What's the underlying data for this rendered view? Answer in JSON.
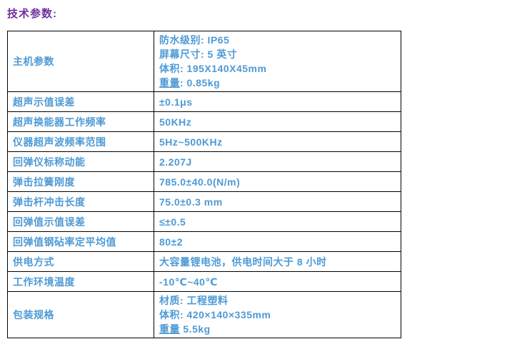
{
  "title": "技术参数:",
  "colors": {
    "title_text": "#7030A0",
    "table_text": "#4E9AD5",
    "table_border": "#000000",
    "background": "#FFFFFF"
  },
  "table": {
    "rows": [
      {
        "label": "主机参数",
        "lines": [
          "防水级别: IP65",
          "屏幕尺寸: 5 英寸",
          "体积: 195X140X45mm",
          {
            "u": "重量",
            "rest": ": 0.85kg"
          }
        ]
      },
      {
        "label": "超声示值误差",
        "value": "±0.1μs"
      },
      {
        "label": "超声换能器工作频率",
        "value": "50KHz"
      },
      {
        "label": "仪器超声波频率范围",
        "value": "5Hz~500KHz"
      },
      {
        "label": "回弹仪标称动能",
        "value": "2.207J"
      },
      {
        "label": "弹击拉簧刚度",
        "value": "785.0±40.0(N/m)"
      },
      {
        "label": "弹击杆冲击长度",
        "value": "75.0±0.3 mm"
      },
      {
        "label": "回弹值示值误差",
        "value": "≤±0.5"
      },
      {
        "label": "回弹值钢砧率定平均值",
        "value": "80±2"
      },
      {
        "label": "供电方式",
        "value": "大容量锂电池，供电时间大于 8 小时"
      },
      {
        "label": "工作环境温度",
        "value": "-10℃~40℃"
      },
      {
        "label": "包装规格",
        "lines": [
          "材质: 工程塑料",
          "体积: 420×140×335mm",
          {
            "u": "重量",
            "rest": " 5.5kg"
          }
        ]
      }
    ]
  }
}
